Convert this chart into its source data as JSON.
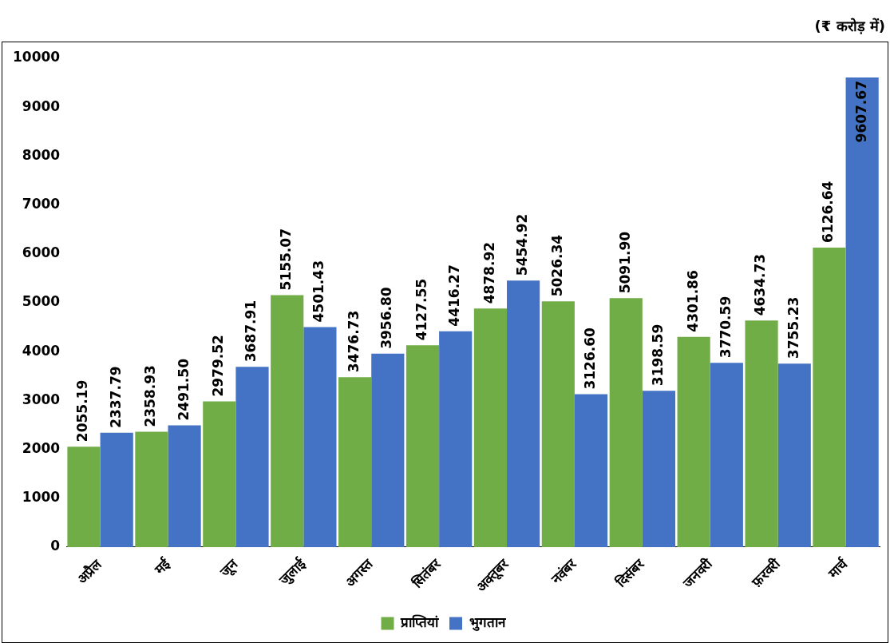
{
  "chart_data": {
    "type": "bar",
    "annotations": [
      "(₹ करोड़ में)"
    ],
    "categories": [
      "अप्रैल",
      "मई",
      "जून",
      "जुलाई",
      "अगस्त",
      "सितंबर",
      "अक्तूबर",
      "नवंबर",
      "दिसंबर",
      "जनवरी",
      "फ़रवरी",
      "मार्च"
    ],
    "series": [
      {
        "name": "प्राप्तियां",
        "color": "#70ad47",
        "values": [
          2055.19,
          2358.93,
          2979.52,
          5155.07,
          3476.73,
          4127.55,
          4878.92,
          5026.34,
          5091.9,
          4301.86,
          4634.73,
          6126.64
        ],
        "value_labels": [
          "2055.19",
          "2358.93",
          "2979.52",
          "5155.07",
          "3476.73",
          "4127.55",
          "4878.92",
          "5026.34",
          "5091.90",
          "4301.86",
          "4634.73",
          "6126.64"
        ]
      },
      {
        "name": "भुगतान",
        "color": "#4472c4",
        "values": [
          2337.79,
          2491.5,
          3687.91,
          4501.43,
          3956.8,
          4416.27,
          5454.92,
          3126.6,
          3198.59,
          3770.59,
          3755.23,
          9607.67
        ],
        "value_labels": [
          "2337.79",
          "2491.50",
          "3687.91",
          "4501.43",
          "3956.80",
          "4416.27",
          "5454.92",
          "3126.60",
          "3198.59",
          "3770.59",
          "3755.23",
          "9607.67"
        ]
      }
    ],
    "ylim": [
      0,
      10000
    ],
    "yticks": [
      0,
      1000,
      2000,
      3000,
      4000,
      5000,
      6000,
      7000,
      8000,
      9000,
      10000
    ],
    "grid": false,
    "legend": "bottom"
  }
}
